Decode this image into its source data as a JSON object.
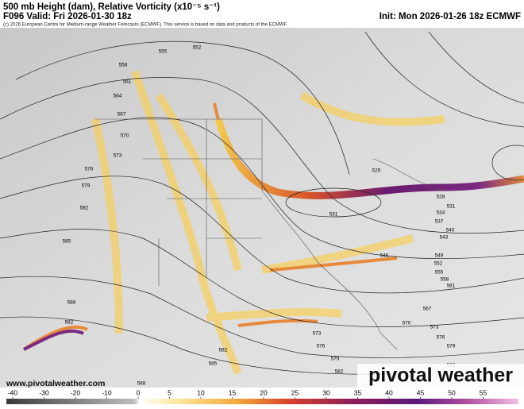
{
  "header": {
    "title": "500 mb Height (dam), Relative Vorticity (x10⁻⁵ s⁻¹)",
    "valid": "F096 Valid: Fri 2026-01-30 18z",
    "init": "Init: Mon 2026-01-26 18z ECMWF",
    "credit": "(c) 2026 European Centre for Medium-range Weather Forecasts (ECMWF). This service is based on data and products of the ECMWF."
  },
  "map": {
    "height_labels": [
      555,
      552,
      558,
      561,
      564,
      567,
      570,
      573,
      576,
      579,
      582,
      585,
      588,
      582,
      525,
      528,
      531,
      531,
      534,
      537,
      540,
      543,
      546,
      549,
      552,
      555,
      558,
      561,
      567,
      570,
      573,
      573,
      576,
      576,
      579,
      579,
      582,
      582,
      582,
      585,
      588
    ]
  },
  "footer": {
    "url": "www.pivotalweather.com",
    "logo": "pivotal weather"
  },
  "colorbar": {
    "ticks": [
      -40,
      -30,
      -20,
      -10,
      0,
      5,
      10,
      15,
      20,
      25,
      30,
      35,
      40,
      45,
      50,
      55
    ]
  }
}
